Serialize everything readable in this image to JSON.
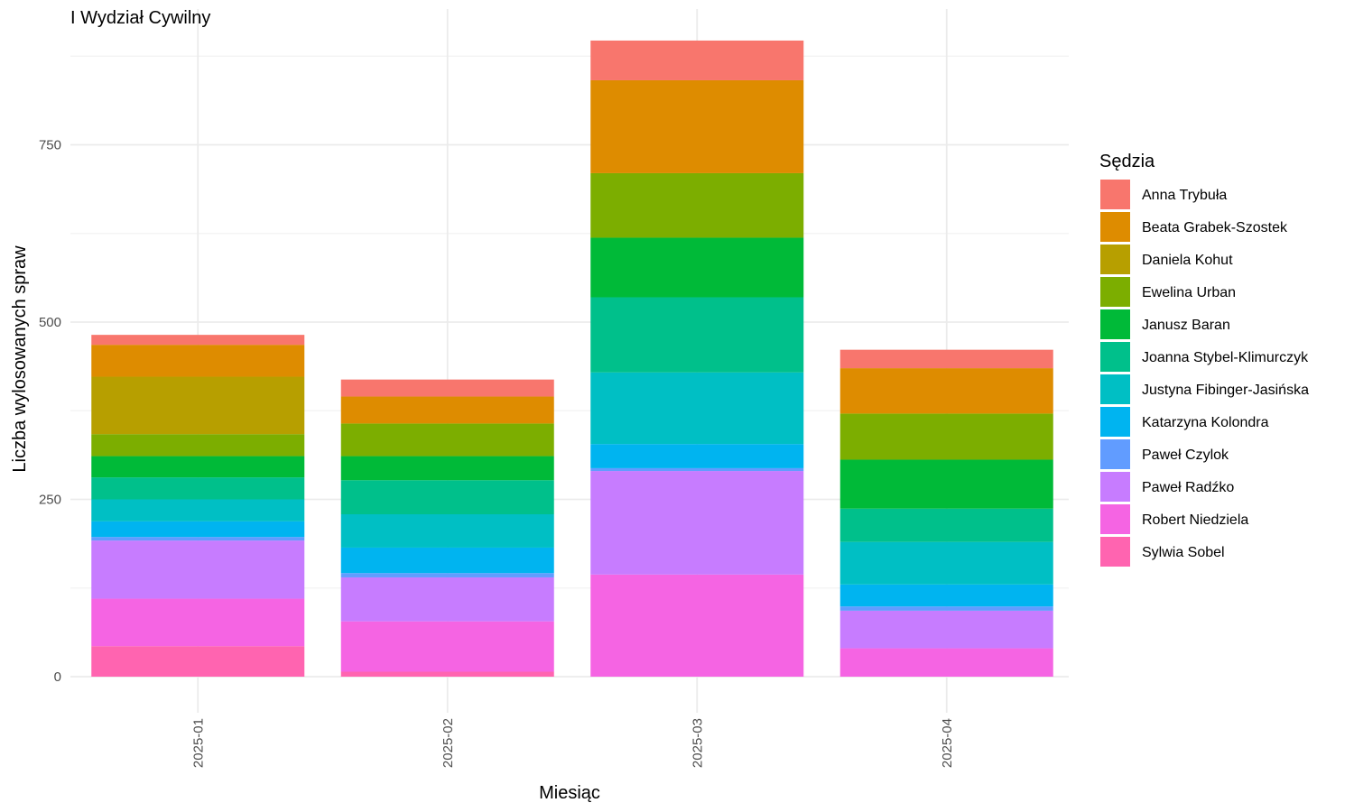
{
  "chart_data": {
    "type": "bar",
    "stacked": true,
    "title": "I Wydział Cywilny",
    "xlabel": "Miesiąc",
    "ylabel": "Liczba wylosowanych spraw",
    "ylim": [
      0,
      900
    ],
    "yticks": [
      0,
      250,
      500,
      750
    ],
    "grid": true,
    "legend_position": "right",
    "legend_title": "Sędzia",
    "categories": [
      "2025-01",
      "2025-02",
      "2025-03",
      "2025-04"
    ],
    "series": [
      {
        "name": "Anna Trybuła",
        "color": "#F8766D",
        "values": [
          14,
          24,
          56,
          26
        ]
      },
      {
        "name": "Beata Grabek-Szostek",
        "color": "#DE8C00",
        "values": [
          45,
          38,
          131,
          64
        ]
      },
      {
        "name": "Daniela Kohut",
        "color": "#B79F00",
        "values": [
          81,
          0,
          0,
          0
        ]
      },
      {
        "name": "Ewelina Urban",
        "color": "#7CAE00",
        "values": [
          31,
          46,
          91,
          65
        ]
      },
      {
        "name": "Janusz Baran",
        "color": "#00BA38",
        "values": [
          30,
          34,
          84,
          69
        ]
      },
      {
        "name": "Joanna Stybel-Klimurczyk",
        "color": "#00C08B",
        "values": [
          31,
          48,
          106,
          47
        ]
      },
      {
        "name": "Justyna Fibinger-Jasińska",
        "color": "#00BFC4",
        "values": [
          31,
          47,
          101,
          60
        ]
      },
      {
        "name": "Katarzyna Kolondra",
        "color": "#00B4F0",
        "values": [
          22,
          36,
          34,
          31
        ]
      },
      {
        "name": "Paweł Czylok",
        "color": "#619CFF",
        "values": [
          5,
          6,
          4,
          6
        ]
      },
      {
        "name": "Paweł Radźko",
        "color": "#C77CFF",
        "values": [
          82,
          62,
          146,
          53
        ]
      },
      {
        "name": "Robert Niedziela",
        "color": "#F564E3",
        "values": [
          67,
          71,
          144,
          40
        ]
      },
      {
        "name": "Sylwia Sobel",
        "color": "#FF64B0",
        "values": [
          43,
          7,
          0,
          0
        ]
      }
    ]
  }
}
